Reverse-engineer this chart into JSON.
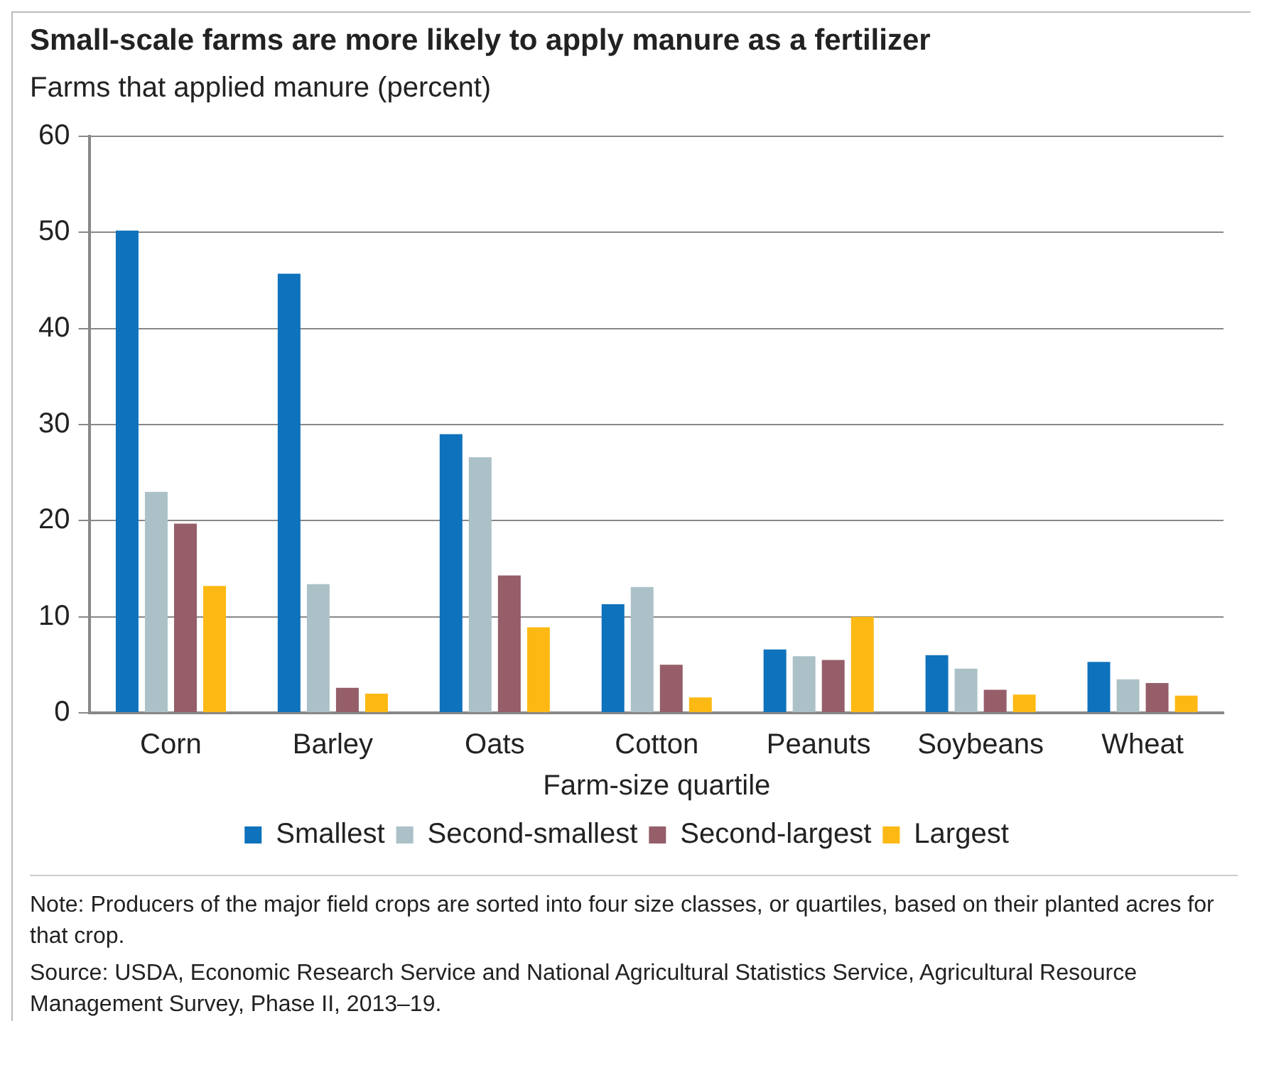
{
  "chart_data": {
    "type": "bar",
    "title": "Small-scale farms are more likely to apply manure as a fertilizer",
    "ylabel": "Farms that applied manure (percent)",
    "xlabel": "Farm-size quartile",
    "categories": [
      "Corn",
      "Barley",
      "Oats",
      "Cotton",
      "Peanuts",
      "Soybeans",
      "Wheat"
    ],
    "series": [
      {
        "name": "Smallest",
        "color": "#0f72bc",
        "values": [
          50.2,
          45.7,
          29.0,
          11.3,
          6.6,
          6.0,
          5.3
        ]
      },
      {
        "name": "Second-smallest",
        "color": "#abc1c7",
        "values": [
          23.0,
          13.4,
          26.6,
          13.1,
          5.9,
          4.6,
          3.5
        ]
      },
      {
        "name": "Second-largest",
        "color": "#955e69",
        "values": [
          19.7,
          2.6,
          14.3,
          5.0,
          5.5,
          2.4,
          3.1
        ]
      },
      {
        "name": "Largest",
        "color": "#fdb913",
        "values": [
          13.2,
          2.0,
          8.9,
          1.6,
          10.0,
          1.9,
          1.8
        ]
      }
    ],
    "ylim": [
      0,
      60
    ],
    "yticks": [
      0,
      10,
      20,
      30,
      40,
      50,
      60
    ],
    "grid": "y",
    "legend": "bottom",
    "annotations": [
      "Note: Producers of the major field crops are sorted into four size classes, or quartiles, based on their planted acres for that crop.",
      "Source: USDA, Economic Research Service and National Agricultural Statistics Service, Agricultural Resource Management Survey, Phase II, 2013–19."
    ]
  }
}
